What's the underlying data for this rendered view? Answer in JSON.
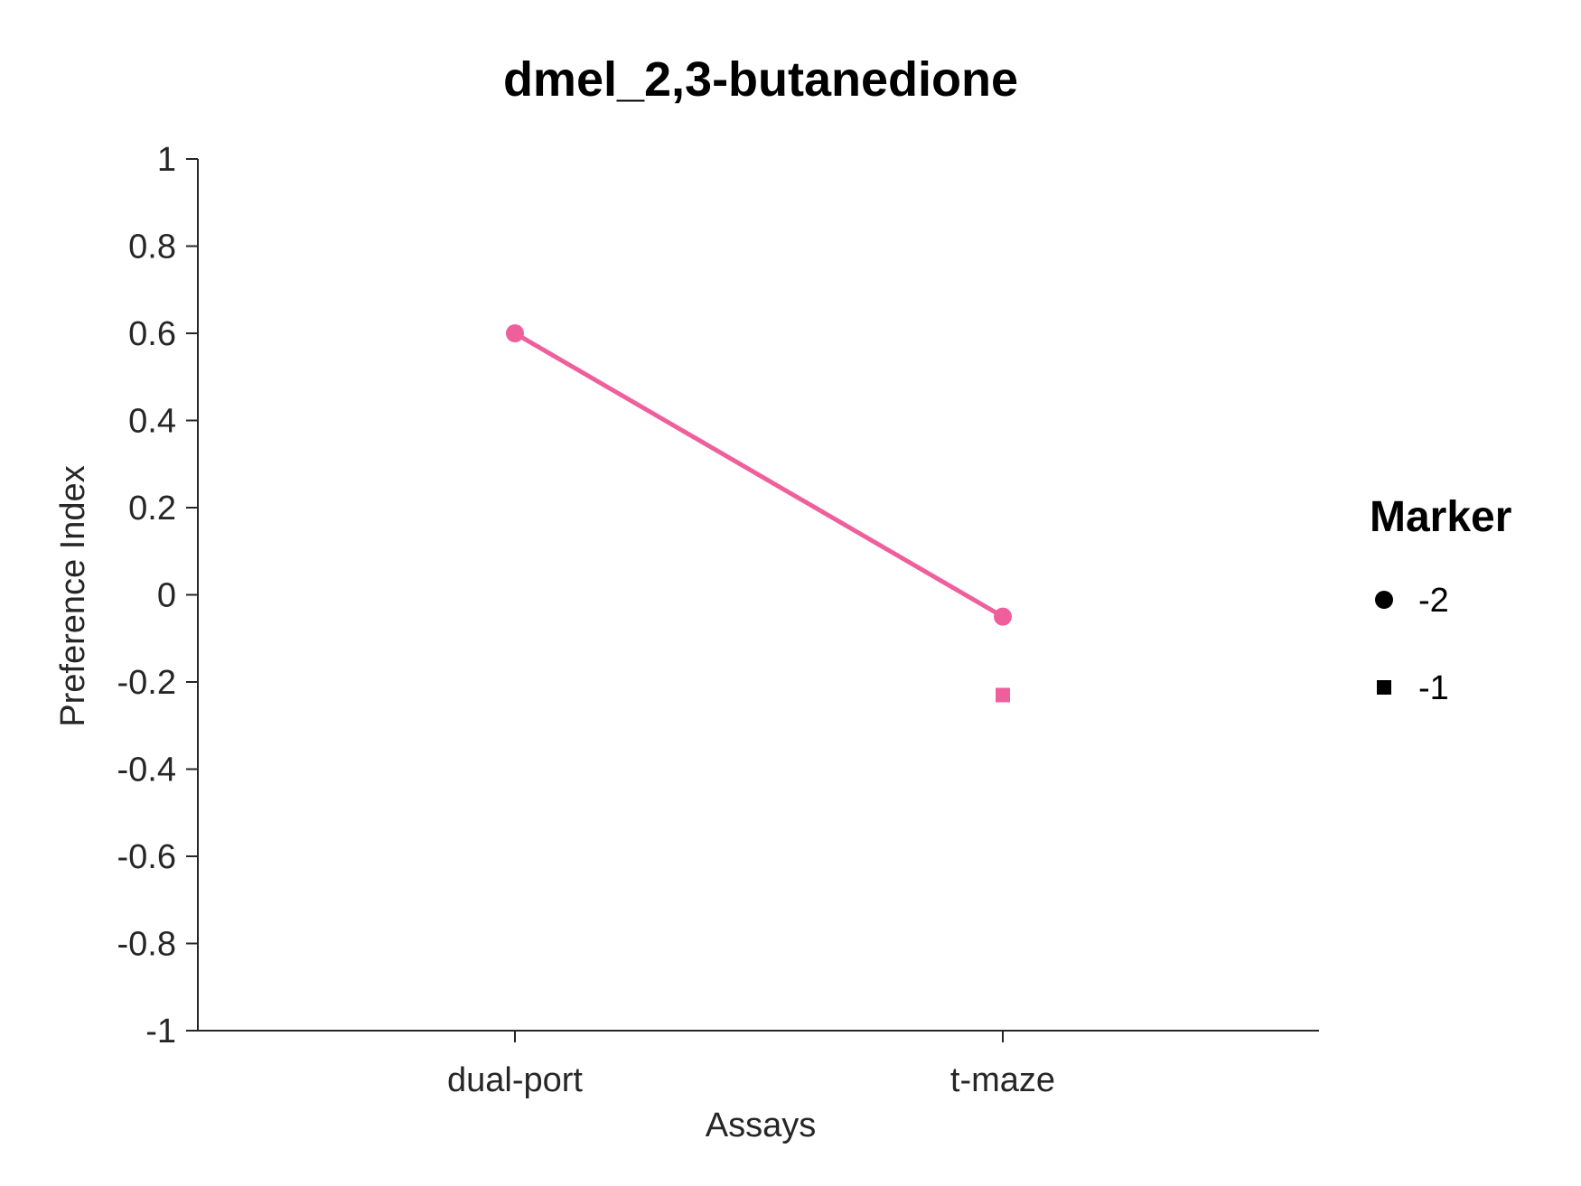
{
  "chart_data": {
    "type": "line",
    "title": "dmel_2,3-butanedione",
    "xlabel": "Assays",
    "ylabel": "Preference Index",
    "categories": [
      "dual-port",
      "t-maze"
    ],
    "ylim": [
      -1,
      1
    ],
    "yticks": [
      1,
      0.8,
      0.6,
      0.4,
      0.2,
      0,
      -0.2,
      -0.4,
      -0.6,
      -0.8,
      -1
    ],
    "ytick_labels": [
      "1",
      "0.8",
      "0.6",
      "0.4",
      "0.2",
      "0",
      "-0.2",
      "-0.4",
      "-0.6",
      "-0.8",
      "-1"
    ],
    "grid": false,
    "legend": {
      "title": "Marker",
      "placement": "right",
      "entries": [
        {
          "label": "-2",
          "marker": "circle"
        },
        {
          "label": "-1",
          "marker": "square"
        }
      ]
    },
    "series": [
      {
        "marker": "circle",
        "connected": true,
        "color": "#ee5f9c",
        "points": [
          {
            "x": "dual-port",
            "y": 0.6
          },
          {
            "x": "t-maze",
            "y": -0.05
          }
        ]
      },
      {
        "marker": "square",
        "connected": false,
        "color": "#ee5f9c",
        "points": [
          {
            "x": "t-maze",
            "y": -0.23
          }
        ]
      }
    ]
  }
}
